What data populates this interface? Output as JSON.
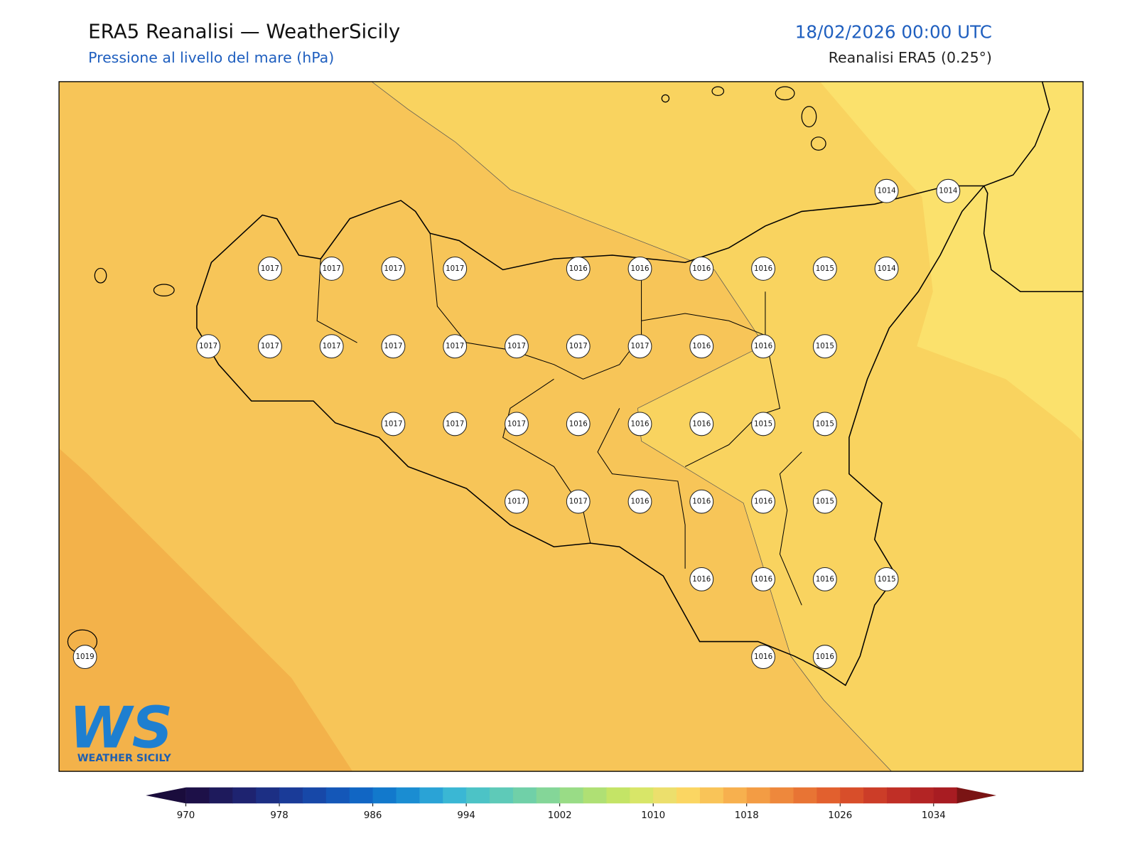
{
  "header": {
    "title": "ERA5 Reanalisi — WeatherSicily",
    "subtitle": "Pressione al livello del mare (hPa)",
    "datetime": "18/02/2026 00:00 UTC",
    "source": "Reanalisi ERA5 (0.25°)"
  },
  "map": {
    "points": [
      1014,
      1014,
      1017,
      1017,
      1017,
      1017,
      1016,
      1016,
      1016,
      1016,
      1015,
      1014,
      1017,
      1017,
      1017,
      1017,
      1017,
      1017,
      1017,
      1017,
      1016,
      1016,
      1015,
      1017,
      1017,
      1017,
      1016,
      1016,
      1016,
      1015,
      1015,
      1017,
      1017,
      1016,
      1016,
      1016,
      1015,
      1016,
      1016,
      1016,
      1015,
      1019,
      1016,
      1016
    ]
  },
  "colorbar": {
    "ticks": [
      970,
      978,
      986,
      994,
      1002,
      1010,
      1018,
      1026,
      1034
    ]
  },
  "logo": {
    "mark": "WS",
    "text": "WEATHER SICILY"
  }
}
